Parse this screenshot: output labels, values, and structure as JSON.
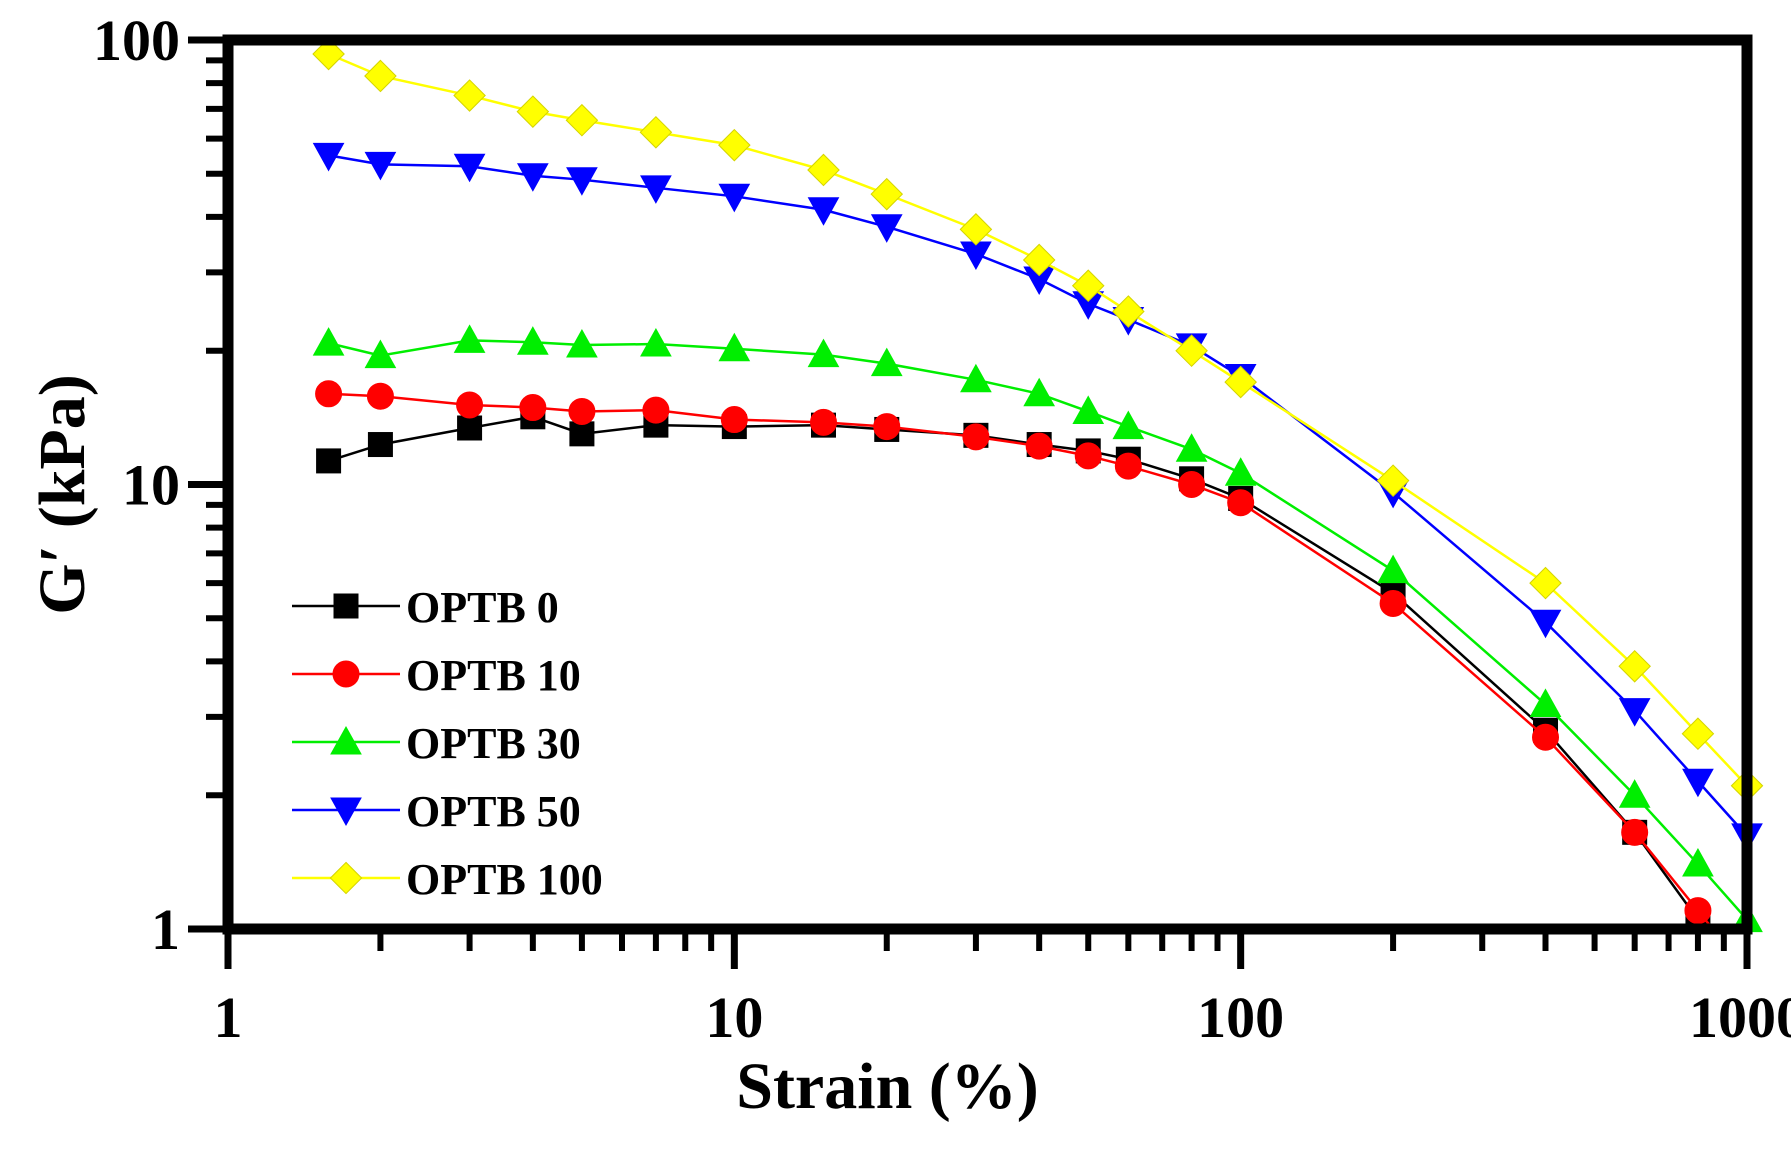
{
  "chart_data": {
    "type": "line",
    "title": "",
    "xlabel": "Strain (%)",
    "ylabel": "G′ (kPa)",
    "xscale": "log",
    "yscale": "log",
    "xlim": [
      1,
      1000
    ],
    "ylim": [
      1,
      100
    ],
    "xticks": [
      {
        "value": 1,
        "label": "1"
      },
      {
        "value": 10,
        "label": "10"
      },
      {
        "value": 100,
        "label": "100"
      },
      {
        "value": 1000,
        "label": "1000"
      }
    ],
    "yticks": [
      {
        "value": 1,
        "label": "1"
      },
      {
        "value": 10,
        "label": "10"
      },
      {
        "value": 100,
        "label": "100"
      }
    ],
    "legend_position": "bottom-left",
    "x": [
      1.58,
      2,
      3,
      4,
      5,
      7,
      10,
      15,
      20,
      30,
      40,
      50,
      60,
      80,
      100,
      200,
      400,
      600,
      800,
      1000
    ],
    "series": [
      {
        "name": "OPTB 0",
        "color": "#000000",
        "marker": "square",
        "values": [
          11.3,
          12.3,
          13.4,
          14.2,
          13.0,
          13.6,
          13.5,
          13.6,
          13.3,
          12.9,
          12.3,
          11.9,
          11.4,
          10.3,
          9.3,
          5.7,
          2.8,
          1.65,
          1.05,
          null
        ]
      },
      {
        "name": "OPTB 10",
        "color": "#ff0000",
        "marker": "circle",
        "values": [
          16.0,
          15.8,
          15.1,
          14.9,
          14.6,
          14.7,
          14.0,
          13.8,
          13.5,
          12.8,
          12.2,
          11.6,
          11.0,
          10.0,
          9.1,
          5.4,
          2.7,
          1.65,
          1.1,
          null
        ]
      },
      {
        "name": "OPTB 30",
        "color": "#00ee00",
        "marker": "triangle-up",
        "values": [
          20.8,
          19.5,
          21.1,
          20.9,
          20.6,
          20.7,
          20.2,
          19.6,
          18.7,
          17.2,
          16.0,
          14.6,
          13.5,
          12.0,
          10.6,
          6.4,
          3.2,
          2.0,
          1.4,
          1.05
        ]
      },
      {
        "name": "OPTB 50",
        "color": "#0000ff",
        "marker": "triangle-down",
        "values": [
          55.0,
          52.5,
          52.0,
          49.5,
          48.5,
          46.5,
          44.5,
          41.5,
          38.0,
          33.0,
          29.0,
          25.5,
          23.5,
          20.5,
          17.5,
          9.6,
          4.9,
          3.1,
          2.15,
          1.62
        ]
      },
      {
        "name": "OPTB 100",
        "color": "#ffff00",
        "marker": "diamond",
        "values": [
          93.0,
          83.0,
          75.0,
          69.0,
          66.0,
          62.0,
          58.0,
          51.0,
          45.0,
          37.5,
          32.0,
          28.0,
          24.5,
          20.0,
          17.0,
          10.2,
          6.0,
          3.9,
          2.75,
          2.1
        ]
      }
    ]
  }
}
